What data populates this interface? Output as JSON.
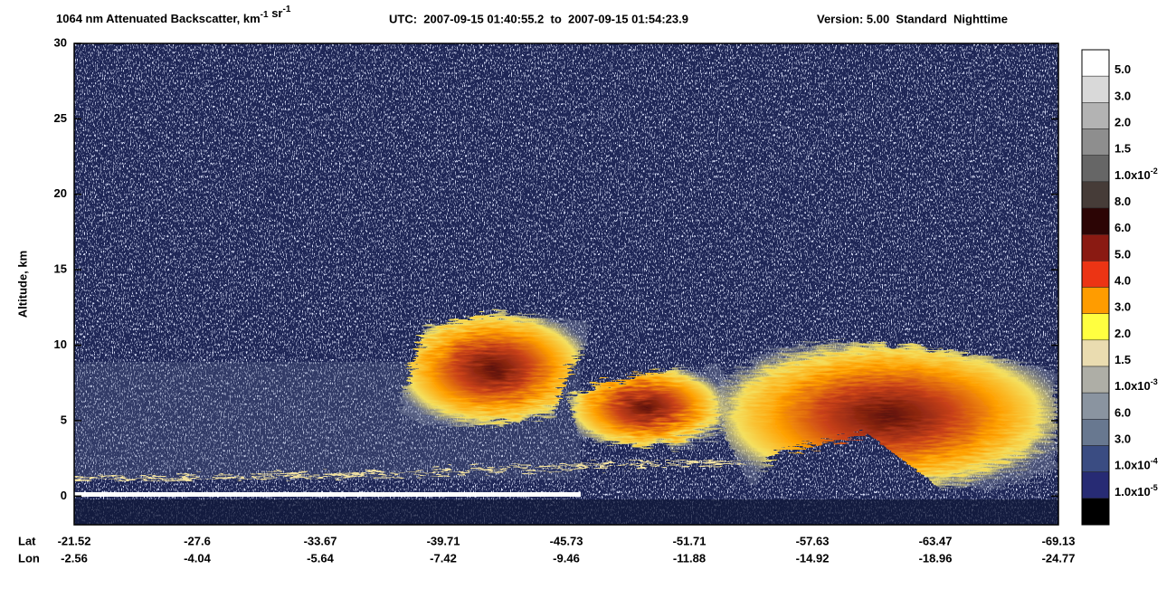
{
  "chart_data": {
    "type": "curtain",
    "title_parts": [
      {
        "text": "1064 nm Attenuated Backscatter, km"
      },
      {
        "sup": "-1"
      },
      {
        "text": " sr"
      },
      {
        "sup": "-1"
      }
    ],
    "time_range": "UTC:  2007-09-15 01:40:55.2  to  2007-09-15 01:54:23.9",
    "version": "Version: 5.00  Standard  Nighttime",
    "ylabel": "Altitude, km",
    "ylim": [
      -1.9,
      30
    ],
    "yticks": [
      0,
      5,
      10,
      15,
      20,
      25,
      30
    ],
    "x_rows": [
      {
        "name": "Lat",
        "labels": [
          -21.52,
          -27.6,
          -33.67,
          -39.71,
          -45.73,
          -51.71,
          -57.63,
          -63.47,
          -69.13
        ]
      },
      {
        "name": "Lon",
        "labels": [
          -2.56,
          -4.04,
          -5.64,
          -7.42,
          -9.46,
          -11.88,
          -14.92,
          -18.96,
          -24.77
        ]
      }
    ],
    "colorbar": {
      "colors": [
        "#ffffff",
        "#d9d9d9",
        "#b3b3b3",
        "#8e8e8e",
        "#666666",
        "#463c38",
        "#2c0505",
        "#8a1a12",
        "#ec3414",
        "#ff9c00",
        "#ffff40",
        "#eadcb0",
        "#aeaea6",
        "#8a94a0",
        "#687890",
        "#3a4c82",
        "#272b74",
        "#000000"
      ],
      "labels": [
        {
          "text": "5.0"
        },
        {
          "text": "3.0"
        },
        {
          "text": "2.0"
        },
        {
          "text": "1.5"
        },
        {
          "text": "1.0x10",
          "sup": "-2"
        },
        {
          "text": "8.0"
        },
        {
          "text": "6.0"
        },
        {
          "text": "5.0"
        },
        {
          "text": "4.0"
        },
        {
          "text": "3.0"
        },
        {
          "text": "2.0"
        },
        {
          "text": "1.5"
        },
        {
          "text": "1.0x10",
          "sup": "-3"
        },
        {
          "text": "6.0"
        },
        {
          "text": "3.0"
        },
        {
          "text": "1.0x10",
          "sup": "-4"
        },
        {
          "text": "1.0x10",
          "sup": "-5"
        }
      ]
    }
  }
}
